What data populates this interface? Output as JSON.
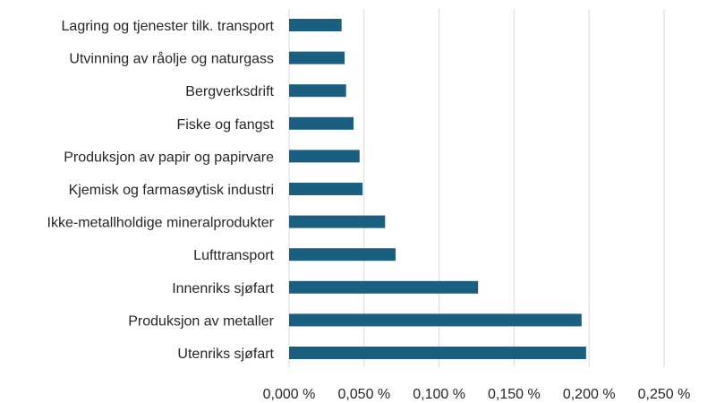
{
  "chart_data": {
    "type": "bar",
    "orientation": "horizontal",
    "categories": [
      "Lagring og tjenester tilk. transport",
      "Utvinning av råolje og naturgass",
      "Bergverksdrift",
      "Fiske og fangst",
      "Produksjon av papir og papirvare",
      "Kjemisk og farmasøytisk industri",
      "Ikke-metallholdige mineralprodukter",
      "Lufttransport",
      "Innenriks sjøfart",
      "Produksjon av metaller",
      "Utenriks sjøfart"
    ],
    "values": [
      0.035,
      0.037,
      0.038,
      0.043,
      0.047,
      0.049,
      0.064,
      0.071,
      0.126,
      0.195,
      0.198
    ],
    "xlim": [
      0,
      0.25
    ],
    "xticks": [
      0,
      0.05,
      0.1,
      0.15,
      0.2,
      0.25
    ],
    "tick_labels": [
      "0,000 %",
      "0,050 %",
      "0,100 %",
      "0,150 %",
      "0,200 %",
      "0,250 %"
    ],
    "grid": "vertical",
    "legend": "none",
    "title": "",
    "xlabel": "",
    "ylabel": "",
    "colors": {
      "bar": "#1a5e80",
      "grid": "#d9d9d9",
      "text": "#262626"
    }
  }
}
